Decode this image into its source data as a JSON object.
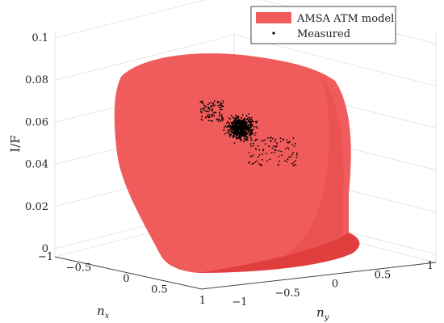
{
  "chart_data": {
    "type": "surface3d",
    "zlabel": "I/F",
    "xlabel_base": "n",
    "xlabel_sub": "x",
    "ylabel_base": "n",
    "ylabel_sub": "y",
    "xlim": [
      -1,
      1
    ],
    "ylim": [
      -1,
      1
    ],
    "zlim": [
      0,
      0.1
    ],
    "x_ticks": [
      "−1",
      "−0.5",
      "0",
      "0.5",
      "1"
    ],
    "y_ticks": [
      "−1",
      "−0.5",
      "0",
      "0.5",
      "1"
    ],
    "z_ticks": [
      "0",
      "0.02",
      "0.04",
      "0.06",
      "0.08",
      "0.1"
    ],
    "grid": true,
    "legend_position": "top-right",
    "series": [
      {
        "name": "AMSA ATM model",
        "kind": "surface",
        "color": "#f05c5c"
      },
      {
        "name": "Measured",
        "kind": "points",
        "color": "#000000"
      }
    ],
    "measured_cluster": {
      "x_range": [
        0.0,
        0.3
      ],
      "y_range": [
        -0.3,
        0.1
      ],
      "z_range": [
        0.045,
        0.065
      ]
    }
  }
}
